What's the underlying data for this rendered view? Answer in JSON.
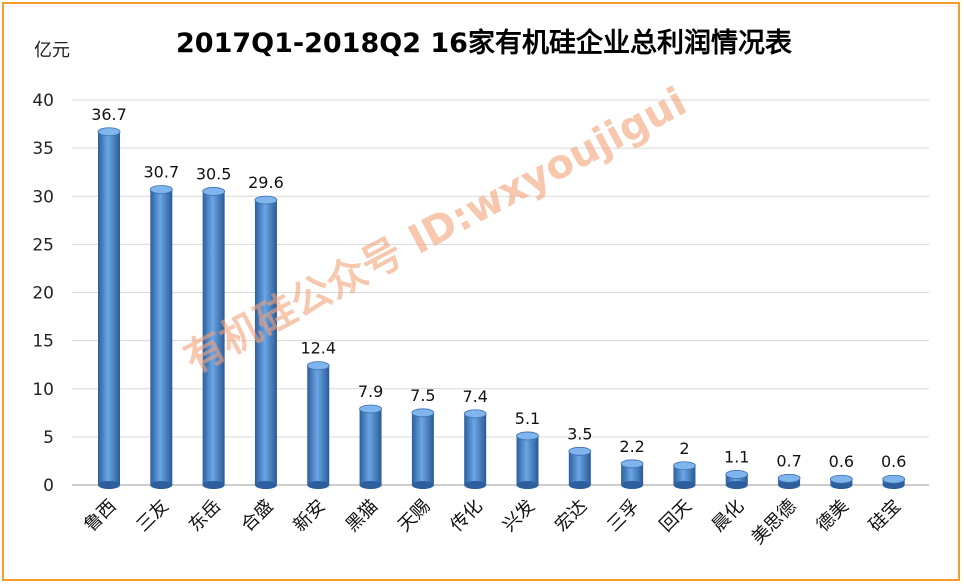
{
  "chart_data": {
    "type": "bar",
    "title": "2017Q1-2018Q2   16家有机硅企业总利润情况表",
    "ylabel": "亿元",
    "xlabel": "",
    "ylim": [
      0,
      40
    ],
    "yticks": [
      0,
      5,
      10,
      15,
      20,
      25,
      30,
      35,
      40
    ],
    "grid": true,
    "categories": [
      "鲁西",
      "三友",
      "东岳",
      "合盛",
      "新安",
      "黑猫",
      "天赐",
      "传化",
      "兴发",
      "宏达",
      "三孚",
      "回天",
      "晨化",
      "美思德",
      "德美",
      "硅宝"
    ],
    "values": [
      36.7,
      30.7,
      30.5,
      29.6,
      12.4,
      7.9,
      7.5,
      7.4,
      5.1,
      3.5,
      2.2,
      2,
      1.1,
      0.7,
      0.6,
      0.6
    ],
    "bar_color": "#4a86c8",
    "border_color": "#f39c2b"
  },
  "watermark": {
    "text": "有机硅公众号 ID:wxyoujigui",
    "color": "#f2a27a"
  }
}
